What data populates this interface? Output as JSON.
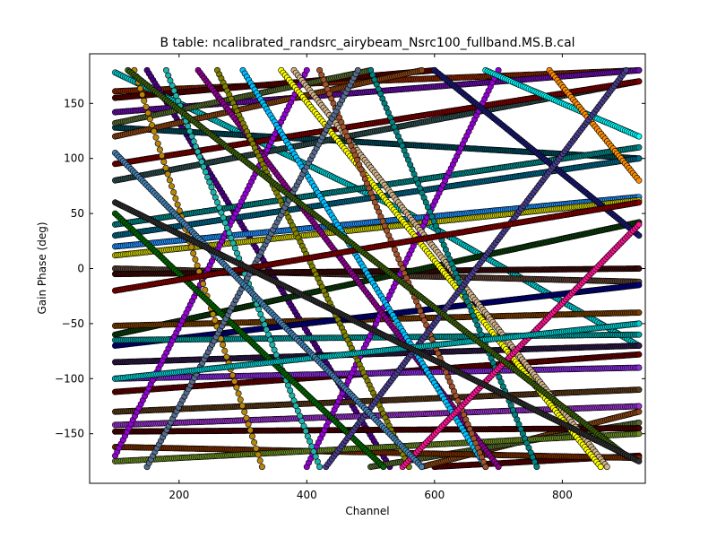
{
  "chart_data": {
    "type": "scatter",
    "title": "B table: ncalibrated_randsrc_airybeam_Nsrc100_fullband.MS.B.cal",
    "xlabel": "Channel",
    "ylabel": "Gain Phase (deg)",
    "xlim": [
      60,
      930
    ],
    "ylim": [
      -195,
      195
    ],
    "x_ticks": [
      200,
      400,
      600,
      800
    ],
    "y_ticks": [
      -150,
      -100,
      -50,
      0,
      50,
      100,
      150
    ],
    "x_tick_labels": [
      "200",
      "400",
      "600",
      "800"
    ],
    "y_tick_labels": [
      "−150",
      "−100",
      "−50",
      "0",
      "50",
      "100",
      "150"
    ],
    "grid": false,
    "legend": "none",
    "marker": "circle",
    "channel_range": [
      100,
      920
    ],
    "series": [
      {
        "color": "#8b2500",
        "segments": [
          [
            100,
            161,
            920,
            180
          ]
        ]
      },
      {
        "color": "#5a0000",
        "segments": [
          [
            100,
            155,
            600,
            180
          ],
          [
            600,
            -180,
            920,
            -170
          ]
        ]
      },
      {
        "color": "#00ced1",
        "segments": [
          [
            100,
            178,
            560,
            50
          ],
          [
            560,
            50,
            920,
            -70
          ]
        ]
      },
      {
        "color": "#4b0082",
        "segments": [
          [
            150,
            180,
            530,
            -180
          ]
        ]
      },
      {
        "color": "#6a0dad",
        "segments": [
          [
            100,
            142,
            920,
            180
          ]
        ]
      },
      {
        "color": "#004a5a",
        "segments": [
          [
            100,
            128,
            920,
            100
          ]
        ]
      },
      {
        "color": "#8b4513",
        "segments": [
          [
            100,
            120,
            580,
            180
          ],
          [
            580,
            -180,
            920,
            -130
          ]
        ]
      },
      {
        "color": "#556b2f",
        "segments": [
          [
            100,
            132,
            500,
            180
          ],
          [
            500,
            -180,
            920,
            -140
          ]
        ]
      },
      {
        "color": "#2f4f4f",
        "segments": [
          [
            100,
            80,
            920,
            170
          ]
        ]
      },
      {
        "color": "#800000",
        "segments": [
          [
            100,
            95,
            920,
            170
          ]
        ]
      },
      {
        "color": "#008b8b",
        "segments": [
          [
            100,
            40,
            920,
            110
          ]
        ]
      },
      {
        "color": "#1e90ff",
        "segments": [
          [
            100,
            20,
            920,
            65
          ]
        ]
      },
      {
        "color": "#00688b",
        "segments": [
          [
            100,
            30,
            920,
            100
          ]
        ]
      },
      {
        "color": "#cccc00",
        "segments": [
          [
            100,
            12,
            920,
            62
          ]
        ]
      },
      {
        "color": "#5c4033",
        "segments": [
          [
            100,
            0,
            920,
            -12
          ]
        ]
      },
      {
        "color": "#3b0a0a",
        "segments": [
          [
            100,
            -5,
            920,
            0
          ]
        ]
      },
      {
        "color": "#0b3d0b",
        "segments": [
          [
            100,
            -60,
            920,
            42
          ]
        ]
      },
      {
        "color": "#7b3f00",
        "segments": [
          [
            100,
            -52,
            920,
            -40
          ]
        ]
      },
      {
        "color": "#000080",
        "segments": [
          [
            100,
            -70,
            920,
            -15
          ]
        ]
      },
      {
        "color": "#00a0a0",
        "segments": [
          [
            100,
            -65,
            920,
            -60
          ]
        ]
      },
      {
        "color": "#2e1a47",
        "segments": [
          [
            100,
            -85,
            920,
            -70
          ]
        ]
      },
      {
        "color": "#660000",
        "segments": [
          [
            100,
            -112,
            920,
            -78
          ]
        ]
      },
      {
        "color": "#8a2be2",
        "segments": [
          [
            100,
            -100,
            920,
            -90
          ]
        ]
      },
      {
        "color": "#5a3a1a",
        "segments": [
          [
            100,
            -130,
            920,
            -110
          ]
        ]
      },
      {
        "color": "#9932cc",
        "segments": [
          [
            100,
            -142,
            920,
            -125
          ]
        ]
      },
      {
        "color": "#4a0000",
        "segments": [
          [
            100,
            -148,
            920,
            -145
          ]
        ]
      },
      {
        "color": "#7a2e00",
        "segments": [
          [
            100,
            -162,
            920,
            -172
          ]
        ]
      },
      {
        "color": "#6b8e23",
        "segments": [
          [
            100,
            -175,
            920,
            -150
          ]
        ]
      },
      {
        "color": "#9400d3",
        "segments": [
          [
            100,
            -170,
            400,
            180
          ],
          [
            400,
            -180,
            700,
            180
          ]
        ]
      },
      {
        "color": "#8b008b",
        "segments": [
          [
            230,
            180,
            700,
            -180
          ]
        ]
      },
      {
        "color": "#20b2aa",
        "segments": [
          [
            180,
            180,
            420,
            -180
          ]
        ]
      },
      {
        "color": "#00bfff",
        "segments": [
          [
            300,
            180,
            680,
            -180
          ]
        ]
      },
      {
        "color": "#d2b48c",
        "segments": [
          [
            380,
            180,
            870,
            -180
          ]
        ]
      },
      {
        "color": "#ffff00",
        "segments": [
          [
            360,
            180,
            860,
            -180
          ]
        ]
      },
      {
        "color": "#008080",
        "segments": [
          [
            500,
            180,
            760,
            -180
          ]
        ]
      },
      {
        "color": "#191970",
        "segments": [
          [
            600,
            180,
            920,
            30
          ]
        ]
      },
      {
        "color": "#00ffff",
        "segments": [
          [
            680,
            180,
            920,
            120
          ]
        ]
      },
      {
        "color": "#ff8c00",
        "segments": [
          [
            780,
            180,
            920,
            80
          ]
        ]
      },
      {
        "color": "#b8860b",
        "segments": [
          [
            130,
            180,
            330,
            -180
          ]
        ]
      },
      {
        "color": "#a0522d",
        "segments": [
          [
            420,
            180,
            680,
            -180
          ]
        ]
      },
      {
        "color": "#7f7f00",
        "segments": [
          [
            260,
            180,
            560,
            -180
          ]
        ]
      },
      {
        "color": "#006400",
        "segments": [
          [
            100,
            50,
            520,
            -180
          ]
        ]
      },
      {
        "color": "#556b8b",
        "segments": [
          [
            150,
            -180,
            480,
            180
          ]
        ]
      },
      {
        "color": "#483d8b",
        "segments": [
          [
            430,
            -180,
            900,
            180
          ]
        ]
      },
      {
        "color": "#ff1493",
        "segments": [
          [
            550,
            -180,
            920,
            40
          ]
        ]
      },
      {
        "color": "#00ced1",
        "segments": [
          [
            100,
            -100,
            920,
            -50
          ]
        ]
      },
      {
        "color": "#8b0000",
        "segments": [
          [
            100,
            -20,
            920,
            60
          ]
        ]
      },
      {
        "color": "#4682b4",
        "segments": [
          [
            100,
            105,
            580,
            -180
          ]
        ]
      },
      {
        "color": "#3a5f0b",
        "segments": [
          [
            120,
            180,
            900,
            -170
          ]
        ]
      },
      {
        "color": "#2f2f2f",
        "segments": [
          [
            100,
            60,
            920,
            -175
          ]
        ]
      }
    ]
  }
}
